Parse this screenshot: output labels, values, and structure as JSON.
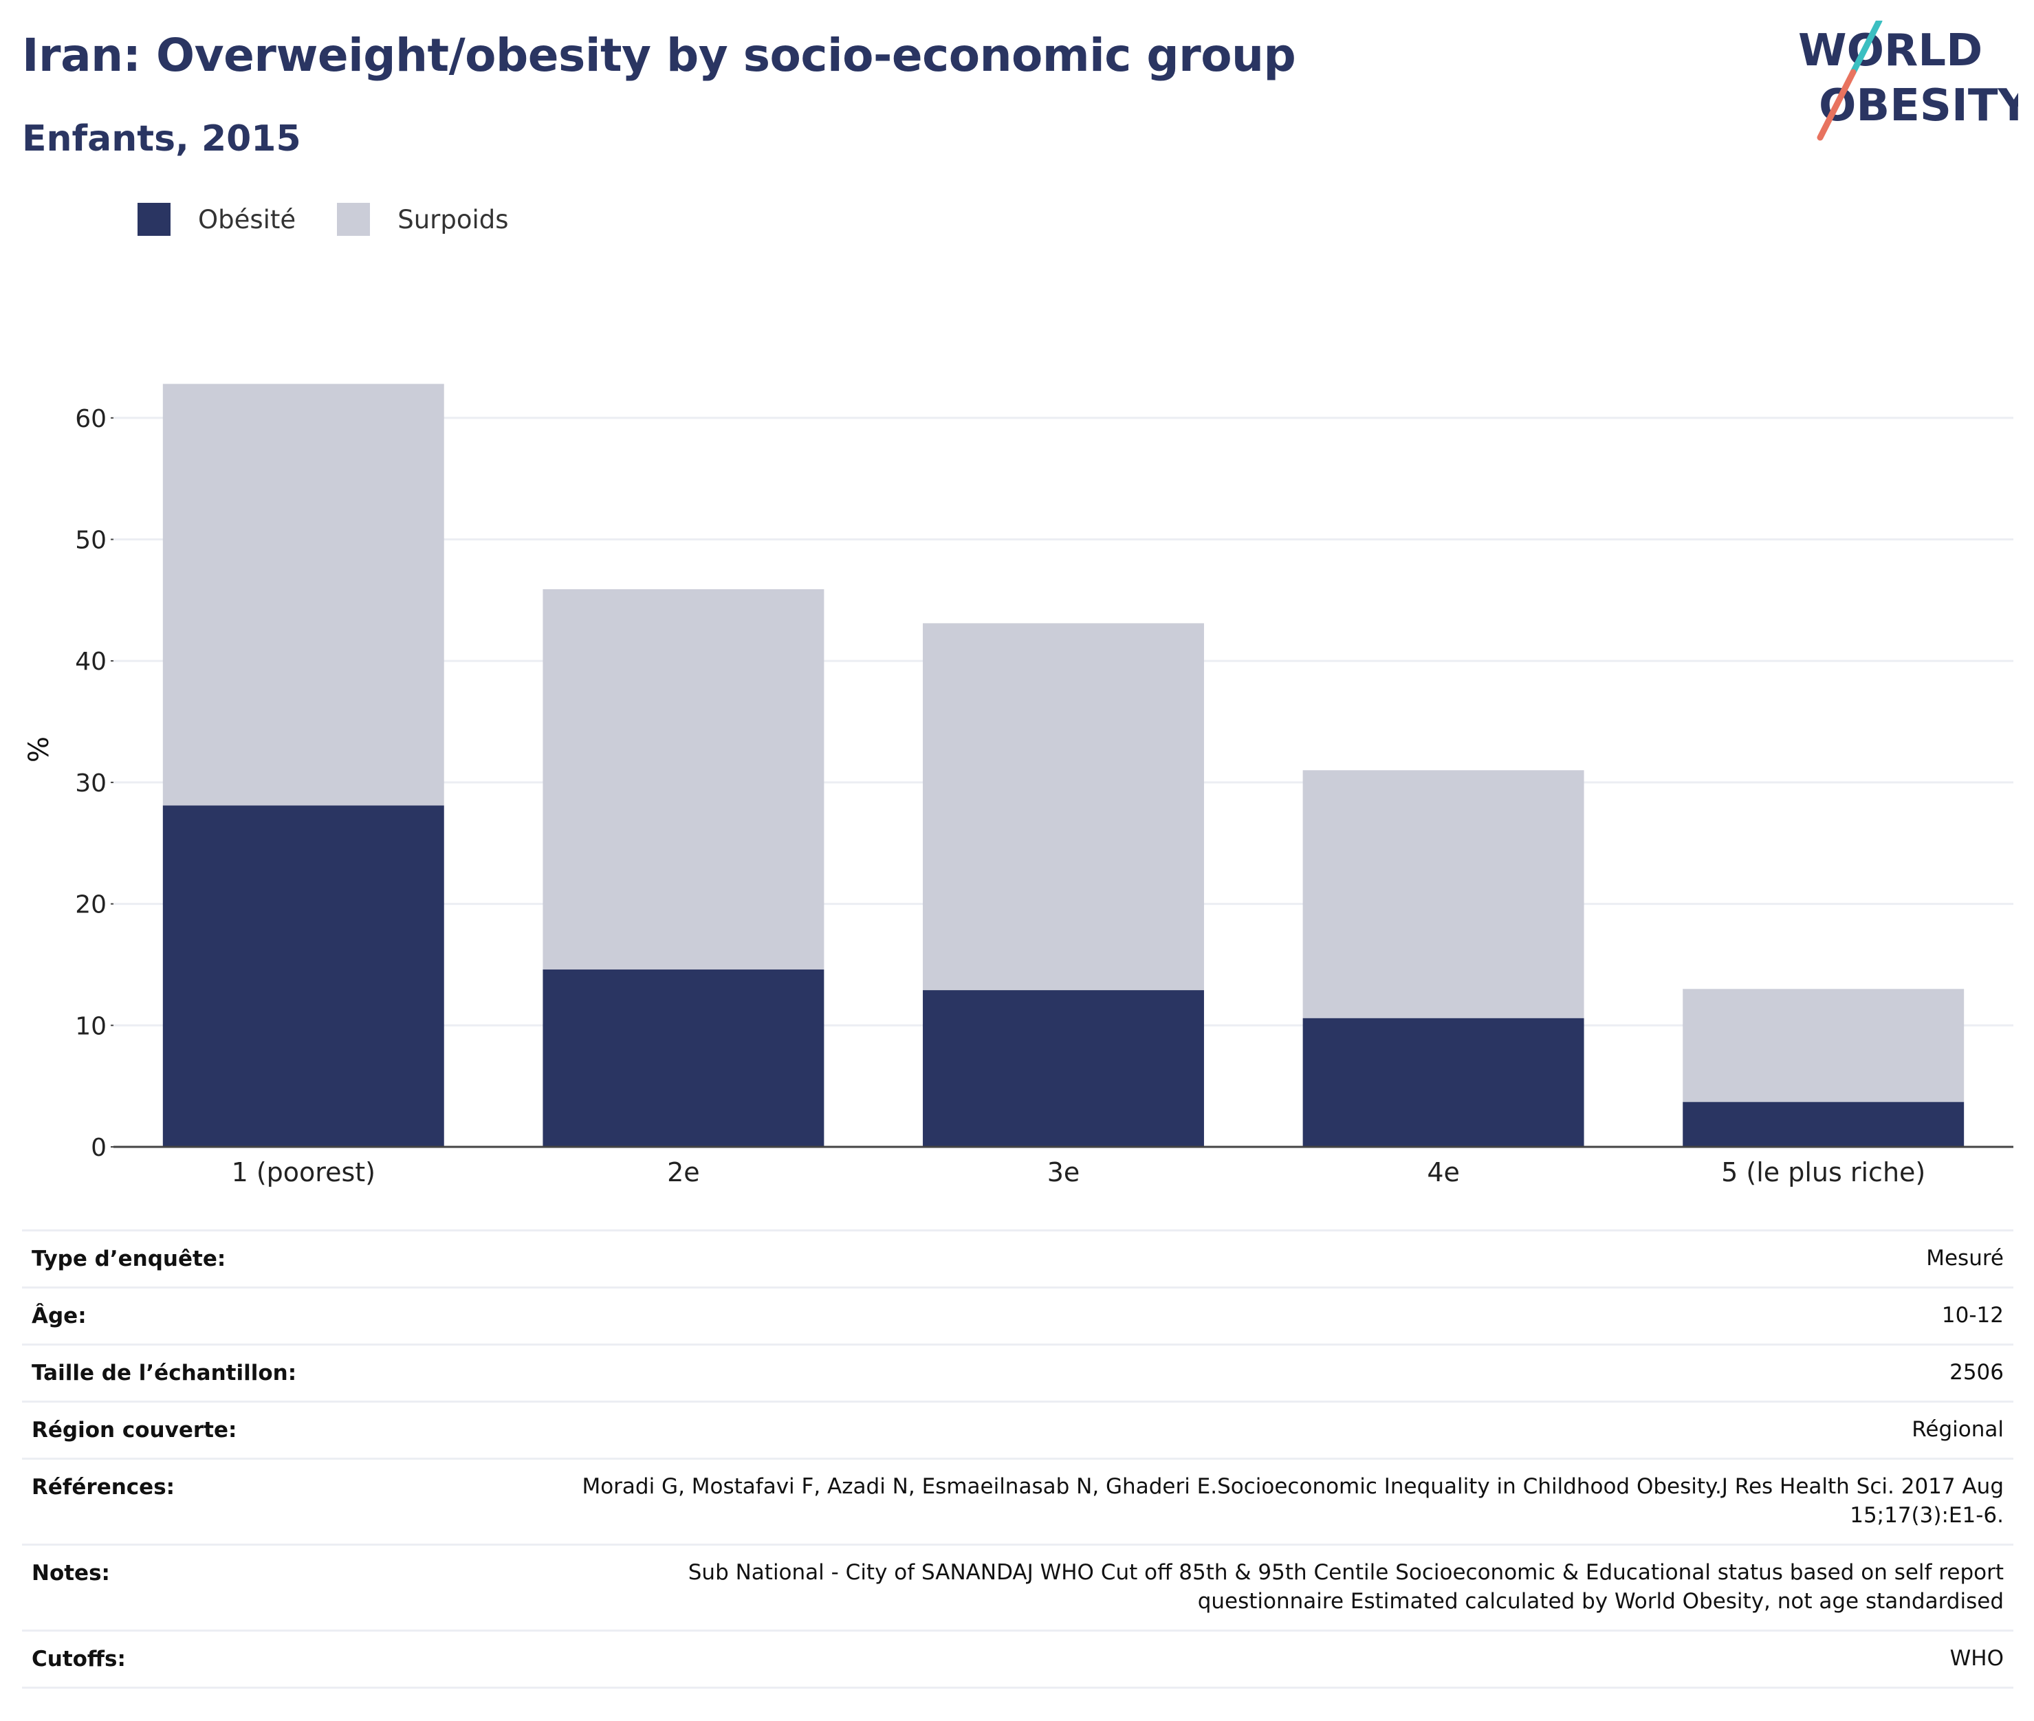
{
  "header": {
    "title": "Iran: Overweight/obesity by socio-economic group",
    "subtitle": "Enfants, 2015"
  },
  "logo": {
    "line1": "WORLD",
    "line2": "OBESITY",
    "accent_teal": "#3bbfc1",
    "accent_coral": "#e8735f"
  },
  "colors": {
    "obesity": "#2a3562",
    "overweight": "#cbcdd8",
    "axis": "#444444",
    "grid": "#eceef3",
    "text_dark": "#2a3562"
  },
  "chart_data": {
    "type": "bar",
    "stacked": true,
    "categories": [
      "1 (poorest)",
      "2e",
      "3e",
      "4e",
      "5 (le plus riche)"
    ],
    "series": [
      {
        "name": "Obésité",
        "values": [
          28.1,
          14.6,
          12.9,
          10.6,
          3.7
        ]
      },
      {
        "name": "Surpoids",
        "values": [
          34.7,
          31.3,
          30.2,
          20.4,
          9.3
        ]
      }
    ],
    "ylabel": "%",
    "xlabel": "",
    "ylim": [
      0,
      63
    ],
    "yticks": [
      0,
      10,
      20,
      30,
      40,
      50,
      60
    ],
    "grid": true,
    "legend_position": "top-left"
  },
  "info": [
    {
      "label": "Type d’enquête:",
      "value": "Mesuré"
    },
    {
      "label": "Âge:",
      "value": "10-12"
    },
    {
      "label": "Taille de l’échantillon:",
      "value": "2506"
    },
    {
      "label": "Région couverte:",
      "value": "Régional"
    },
    {
      "label": "Références:",
      "value": "Moradi G, Mostafavi F, Azadi N, Esmaeilnasab N, Ghaderi E.Socioeconomic Inequality in Childhood Obesity.J Res Health Sci. 2017 Aug 15;17(3):E1-6."
    },
    {
      "label": "Notes:",
      "value": "Sub National - City of SANANDAJ WHO Cut off 85th & 95th Centile Socioeconomic & Educational status based on self report questionnaire Estimated calculated by World Obesity, not age standardised"
    },
    {
      "label": "Cutoffs:",
      "value": "WHO"
    }
  ]
}
